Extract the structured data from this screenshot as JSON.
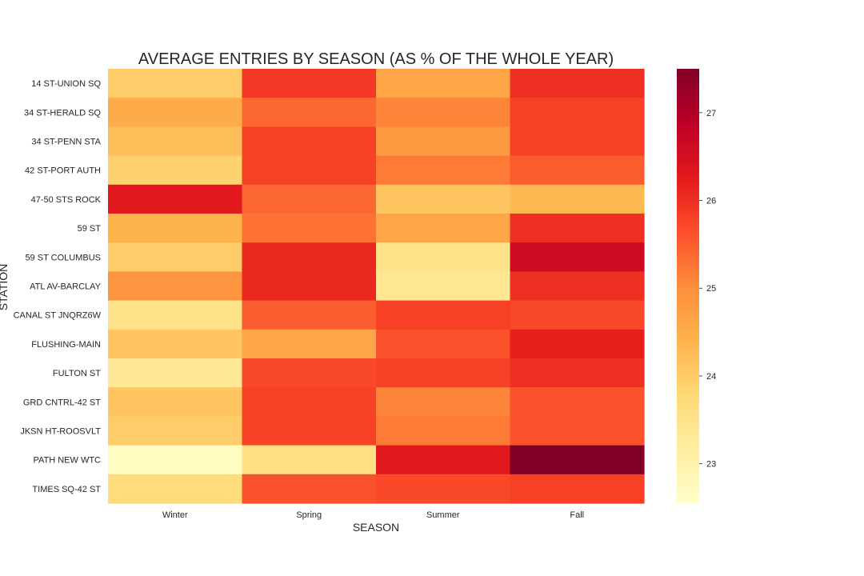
{
  "chart_data": {
    "type": "heatmap",
    "title": "AVERAGE ENTRIES BY SEASON (AS % OF THE WHOLE YEAR)",
    "xlabel": "SEASON",
    "ylabel": "STATION",
    "x_categories": [
      "Winter",
      "Spring",
      "Summer",
      "Fall"
    ],
    "y_categories": [
      "14 ST-UNION SQ",
      "34 ST-HERALD SQ",
      "34 ST-PENN STA",
      "42 ST-PORT AUTH",
      "47-50 STS ROCK",
      "59 ST",
      "59 ST COLUMBUS",
      "ATL AV-BARCLAY",
      "CANAL ST JNQRZ6W",
      "FLUSHING-MAIN",
      "FULTON ST",
      "GRD CNTRL-42 ST",
      "JKSN HT-ROOSVLT",
      "PATH NEW WTC",
      "TIMES SQ-42 ST"
    ],
    "values": [
      [
        24.0,
        25.9,
        24.6,
        26.0
      ],
      [
        24.5,
        25.4,
        25.1,
        25.8
      ],
      [
        24.2,
        25.8,
        24.8,
        25.8
      ],
      [
        23.9,
        25.8,
        25.2,
        25.5
      ],
      [
        26.3,
        25.4,
        24.1,
        24.3
      ],
      [
        24.4,
        25.3,
        24.6,
        26.0
      ],
      [
        24.0,
        26.1,
        23.5,
        26.6
      ],
      [
        24.9,
        26.1,
        23.4,
        26.0
      ],
      [
        23.5,
        25.5,
        25.8,
        25.7
      ],
      [
        24.1,
        24.6,
        25.6,
        26.2
      ],
      [
        23.3,
        25.7,
        25.8,
        26.0
      ],
      [
        24.1,
        25.8,
        25.1,
        25.6
      ],
      [
        24.0,
        25.8,
        25.2,
        25.6
      ],
      [
        22.7,
        23.6,
        26.3,
        27.5
      ],
      [
        23.7,
        25.6,
        25.7,
        25.8
      ]
    ],
    "colorbar": {
      "range": [
        22.55,
        27.5
      ],
      "ticks": [
        23,
        24,
        25,
        26,
        27
      ],
      "colormap": "YlOrRd"
    }
  }
}
